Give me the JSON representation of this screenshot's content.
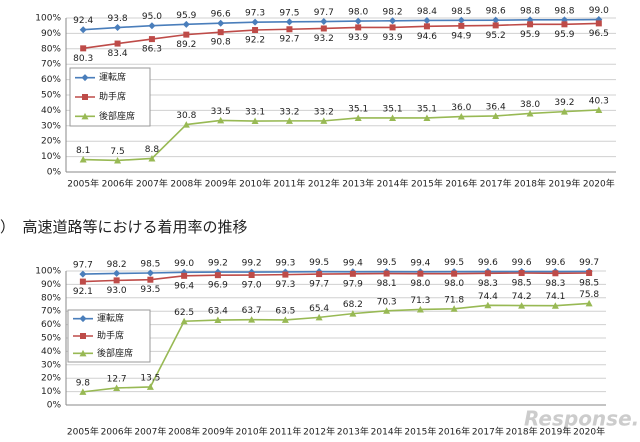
{
  "chart_data": [
    {
      "type": "line",
      "categories": [
        "2005年",
        "2006年",
        "2007年",
        "2008年",
        "2009年",
        "2010年",
        "2011年",
        "2012年",
        "2013年",
        "2014年",
        "2015年",
        "2016年",
        "2017年",
        "2018年",
        "2019年",
        "2020年"
      ],
      "series": [
        {
          "name": "運転席",
          "color": "#4a7ebb",
          "marker": "diamond",
          "values": [
            92.4,
            93.8,
            95.0,
            95.9,
            96.6,
            97.3,
            97.5,
            97.7,
            98.0,
            98.2,
            98.4,
            98.5,
            98.6,
            98.8,
            98.8,
            99.0
          ],
          "value_labels": [
            "92.4",
            "93.8",
            "95.0",
            "95.9",
            "96.6",
            "97.3",
            "97.5",
            "97.7",
            "98.0",
            "98.2",
            "98.4",
            "98.5",
            "98.6",
            "98.8",
            "98.8",
            "99.0"
          ]
        },
        {
          "name": "助手席",
          "color": "#be4b48",
          "marker": "square",
          "values": [
            80.3,
            83.4,
            86.3,
            89.2,
            90.8,
            92.2,
            92.7,
            93.2,
            93.9,
            93.9,
            94.6,
            94.9,
            95.2,
            95.9,
            95.9,
            96.5
          ],
          "value_labels": [
            "80.3",
            "83.4",
            "86.3",
            "89.2",
            "90.8",
            "92.2",
            "92.7",
            "93.2",
            "93.9",
            "93.9",
            "94.6",
            "94.9",
            "95.2",
            "95.9",
            "95.9",
            "96.5"
          ]
        },
        {
          "name": "後部座席",
          "color": "#98b954",
          "marker": "triangle",
          "values": [
            8.1,
            7.5,
            8.8,
            30.8,
            33.5,
            33.1,
            33.2,
            33.2,
            35.1,
            35.1,
            35.1,
            36.0,
            36.4,
            38.0,
            39.2,
            40.3
          ],
          "value_labels": [
            "8.1",
            "7.5",
            "8.8",
            "30.8",
            "33.5",
            "33.1",
            "33.2",
            "33.2",
            "35.1",
            "35.1",
            "35.1",
            "36.0",
            "36.4",
            "38.0",
            "39.2",
            "40.3"
          ]
        }
      ],
      "ylim": [
        0,
        100
      ],
      "yticks": [
        {
          "value": 0,
          "label": "0%"
        },
        {
          "value": 10,
          "label": "10%"
        },
        {
          "value": 20,
          "label": "20%"
        },
        {
          "value": 30,
          "label": "30%"
        },
        {
          "value": 40,
          "label": "40%"
        },
        {
          "value": 50,
          "label": "50%"
        },
        {
          "value": 60,
          "label": "60%"
        },
        {
          "value": 70,
          "label": "70%"
        },
        {
          "value": 80,
          "label": "80%"
        },
        {
          "value": 90,
          "label": "90%"
        },
        {
          "value": 100,
          "label": "100%"
        }
      ],
      "grid": true,
      "legend": "left"
    },
    {
      "type": "line",
      "categories": [
        "2005年",
        "2006年",
        "2007年",
        "2008年",
        "2009年",
        "2010年",
        "2011年",
        "2012年",
        "2013年",
        "2014年",
        "2015年",
        "2016年",
        "2017年",
        "2018年",
        "2019年",
        "2020年"
      ],
      "series": [
        {
          "name": "運転席",
          "color": "#4a7ebb",
          "marker": "diamond",
          "values": [
            97.7,
            98.2,
            98.5,
            99.0,
            99.2,
            99.2,
            99.3,
            99.5,
            99.4,
            99.5,
            99.4,
            99.5,
            99.6,
            99.6,
            99.6,
            99.7
          ],
          "value_labels": [
            "97.7",
            "98.2",
            "98.5",
            "99.0",
            "99.2",
            "99.2",
            "99.3",
            "99.5",
            "99.4",
            "99.5",
            "99.4",
            "99.5",
            "99.6",
            "99.6",
            "99.6",
            "99.7"
          ]
        },
        {
          "name": "助手席",
          "color": "#be4b48",
          "marker": "square",
          "values": [
            92.1,
            93.0,
            93.5,
            96.4,
            96.9,
            97.0,
            97.3,
            97.7,
            97.9,
            98.1,
            98.0,
            98.0,
            98.3,
            98.5,
            98.3,
            98.5
          ],
          "value_labels": [
            "92.1",
            "93.0",
            "93.5",
            "96.4",
            "96.9",
            "97.0",
            "97.3",
            "97.7",
            "97.9",
            "98.1",
            "98.0",
            "98.0",
            "98.3",
            "98.5",
            "98.3",
            "98.5"
          ]
        },
        {
          "name": "後部座席",
          "color": "#98b954",
          "marker": "triangle",
          "values": [
            9.8,
            12.7,
            13.5,
            62.5,
            63.4,
            63.7,
            63.5,
            65.4,
            68.2,
            70.3,
            71.3,
            71.8,
            74.4,
            74.2,
            74.1,
            75.8
          ],
          "value_labels": [
            "9.8",
            "12.7",
            "13.5",
            "62.5",
            "63.4",
            "63.7",
            "63.5",
            "65.4",
            "68.2",
            "70.3",
            "71.3",
            "71.8",
            "74.4",
            "74.2",
            "74.1",
            "75.8"
          ]
        }
      ],
      "ylim": [
        0,
        100
      ],
      "yticks": [
        {
          "value": 0,
          "label": "0%"
        },
        {
          "value": 10,
          "label": "10%"
        },
        {
          "value": 20,
          "label": "20%"
        },
        {
          "value": 30,
          "label": "30%"
        },
        {
          "value": 40,
          "label": "40%"
        },
        {
          "value": 50,
          "label": "50%"
        },
        {
          "value": 60,
          "label": "60%"
        },
        {
          "value": 70,
          "label": "70%"
        },
        {
          "value": 80,
          "label": "80%"
        },
        {
          "value": 90,
          "label": "90%"
        },
        {
          "value": 100,
          "label": "100%"
        }
      ],
      "grid": true,
      "legend": "left"
    }
  ],
  "heading": "）　高速道路等における着用率の推移",
  "watermark": "Response."
}
